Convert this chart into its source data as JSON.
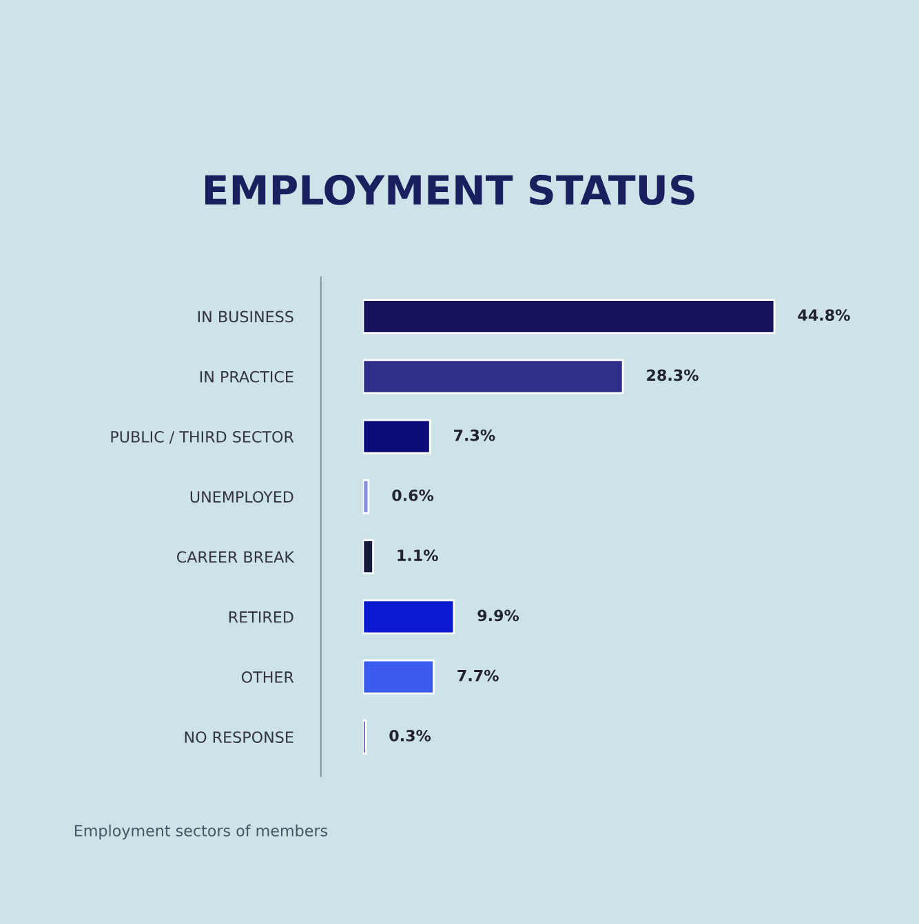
{
  "chart_data": {
    "type": "bar",
    "orientation": "horizontal",
    "title": "EMPLOYMENT STATUS",
    "categories": [
      "IN BUSINESS",
      "IN PRACTICE",
      "PUBLIC / THIRD SECTOR",
      "UNEMPLOYED",
      "CAREER BREAK",
      "RETIRED",
      "OTHER",
      "NO RESPONSE"
    ],
    "values": [
      44.8,
      28.3,
      7.3,
      0.6,
      1.1,
      9.9,
      7.7,
      0.3
    ],
    "colors": [
      "#15135c",
      "#2f2f8a",
      "#0c0b7a",
      "#8a90d8",
      "#151a3a",
      "#0a1ad0",
      "#3b5bef",
      "#1b1a72"
    ],
    "value_labels": [
      "44.8%",
      "28.3%",
      "7.3%",
      "0.6%",
      "1.1%",
      "9.9%",
      "7.7%",
      "0.3%"
    ],
    "annotations": [
      "Employment sectors of members"
    ]
  }
}
